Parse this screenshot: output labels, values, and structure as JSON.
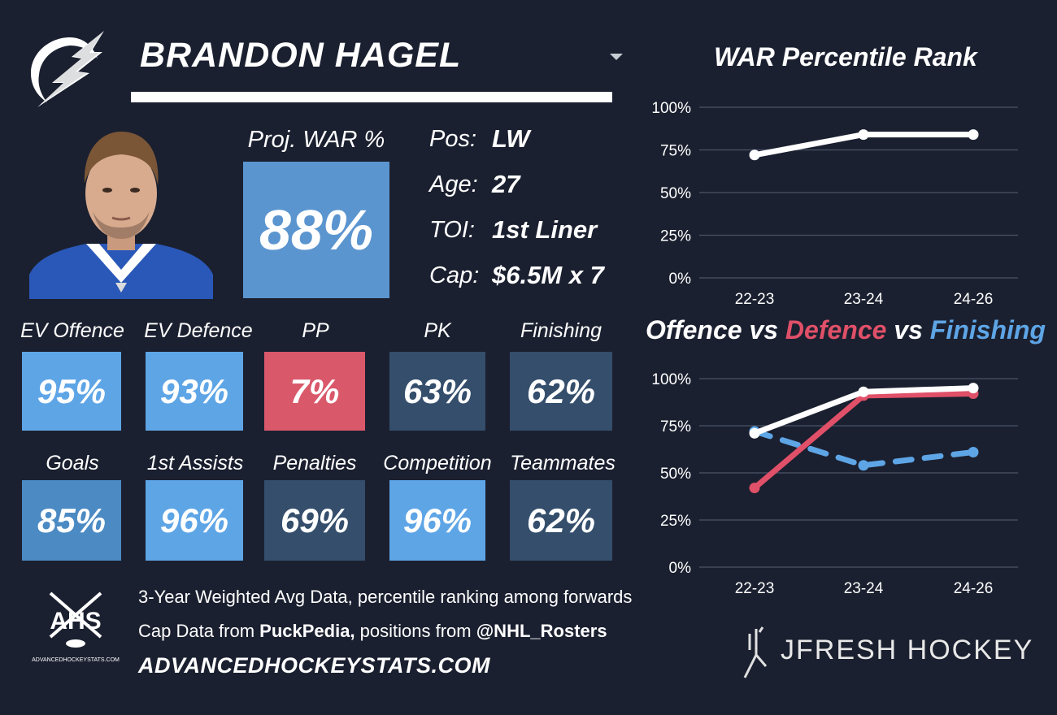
{
  "player": {
    "name": "BRANDON HAGEL",
    "proj_war_label": "Proj. WAR %",
    "proj_war_value": "88%",
    "proj_war_color": "#5b95cf"
  },
  "info": [
    {
      "label": "Pos:",
      "value": "LW"
    },
    {
      "label": "Age:",
      "value": "27"
    },
    {
      "label": "TOI:",
      "value": "1st Liner"
    },
    {
      "label": "Cap:",
      "value": "$6.5M x 7"
    }
  ],
  "tiles_row1": [
    {
      "label": "EV Offence",
      "value": "95%",
      "color": "#5ea5e6"
    },
    {
      "label": "EV Defence",
      "value": "93%",
      "color": "#5ea5e6"
    },
    {
      "label": "PP",
      "value": "7%",
      "color": "#d9586a"
    },
    {
      "label": "PK",
      "value": "63%",
      "color": "#344e6c"
    },
    {
      "label": "Finishing",
      "value": "62%",
      "color": "#344e6c"
    }
  ],
  "tiles_row2": [
    {
      "label": "Goals",
      "value": "85%",
      "color": "#4b8ac3"
    },
    {
      "label": "1st Assists",
      "value": "96%",
      "color": "#5ea5e6"
    },
    {
      "label": "Penalties",
      "value": "69%",
      "color": "#344e6c"
    },
    {
      "label": "Competition",
      "value": "96%",
      "color": "#5ea5e6"
    },
    {
      "label": "Teammates",
      "value": "62%",
      "color": "#344e6c"
    }
  ],
  "footer": {
    "line1": "3-Year Weighted Avg Data, percentile ranking among forwards",
    "line2_prefix": "Cap Data from ",
    "line2_source": "PuckPedia,",
    "line2_mid": " positions from ",
    "line2_handle": "@NHL_Rosters",
    "website": "ADVANCEDHOCKEYSTATS.COM",
    "ahs_logo_text": "AHS",
    "ahs_logo_sub": "ADVANCEDHOCKEYSTATS.COM",
    "brand": "JFRESH HOCKEY"
  },
  "chart_data": [
    {
      "type": "line",
      "title": "WAR Percentile Rank",
      "categories": [
        "22-23",
        "23-24",
        "24-26"
      ],
      "yticks": [
        "0%",
        "25%",
        "50%",
        "75%",
        "100%"
      ],
      "ylim": [
        0,
        100
      ],
      "grid": true,
      "series": [
        {
          "values": [
            72,
            84,
            84
          ],
          "color": "#ffffff",
          "dashed": false
        }
      ]
    },
    {
      "type": "line",
      "title_parts": [
        {
          "text": "Offence",
          "color": "#ffffff"
        },
        {
          "text": " vs ",
          "color": "#ffffff"
        },
        {
          "text": "Defence",
          "color": "#e05068"
        },
        {
          "text": " vs ",
          "color": "#ffffff"
        },
        {
          "text": "Finishing",
          "color": "#5ea5e6"
        }
      ],
      "categories": [
        "22-23",
        "23-24",
        "24-26"
      ],
      "yticks": [
        "0%",
        "25%",
        "50%",
        "75%",
        "100%"
      ],
      "ylim": [
        0,
        100
      ],
      "grid": true,
      "series": [
        {
          "name": "Finishing",
          "values": [
            72,
            54,
            61
          ],
          "color": "#5ea5e6",
          "dashed": true
        },
        {
          "name": "Defence",
          "values": [
            42,
            91,
            92
          ],
          "color": "#e05068",
          "dashed": false
        },
        {
          "name": "Offence",
          "values": [
            71,
            93,
            95
          ],
          "color": "#ffffff",
          "dashed": false
        }
      ]
    }
  ]
}
